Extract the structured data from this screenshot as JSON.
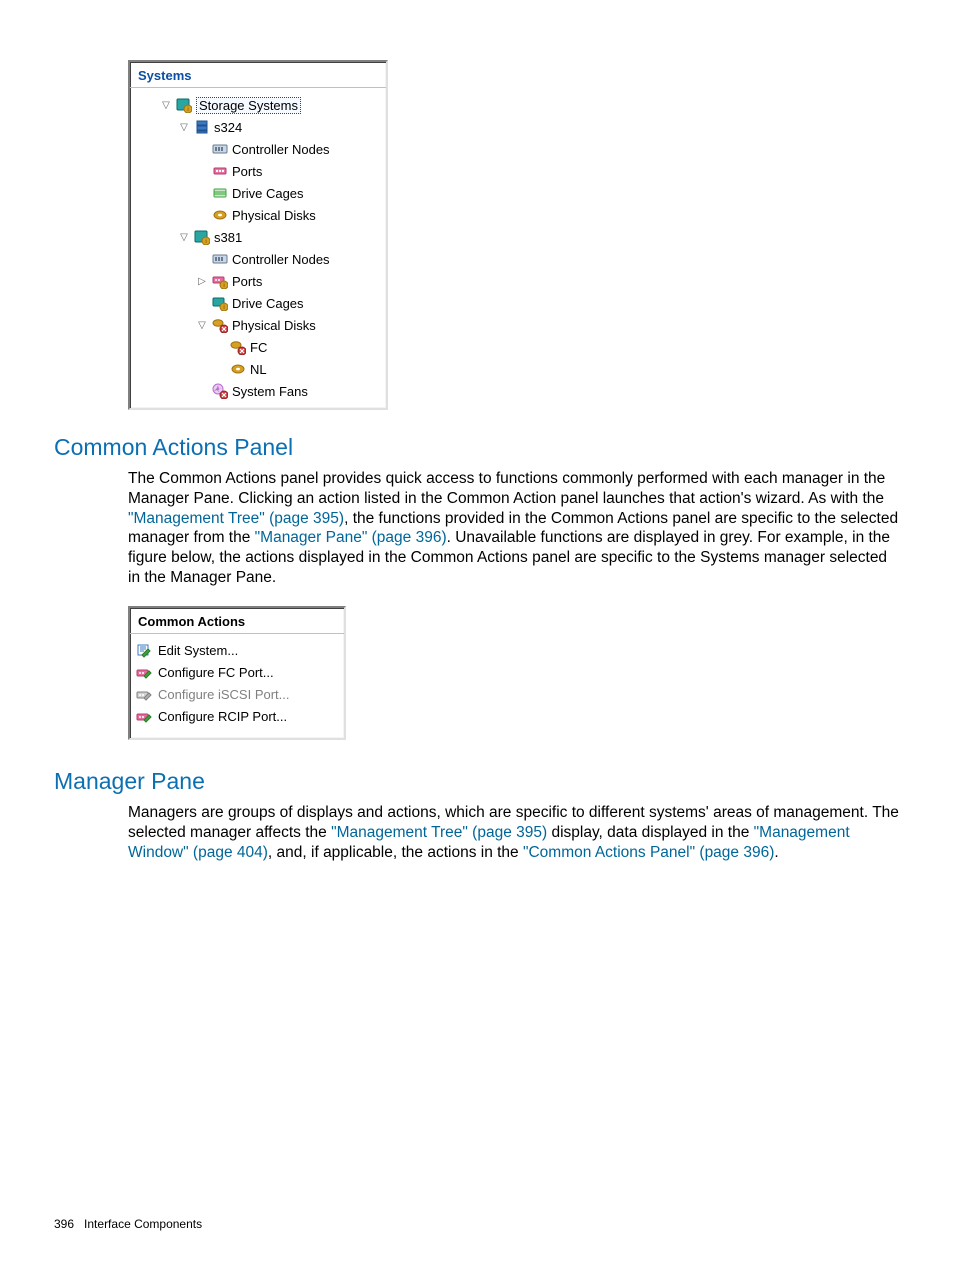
{
  "systems_panel": {
    "title": "Systems",
    "title_color": "#0b4ea2",
    "tree": [
      {
        "level": 1,
        "expander": "down",
        "icon": "storage-systems",
        "label": "Storage Systems",
        "selected": true
      },
      {
        "level": 2,
        "expander": "down",
        "icon": "system",
        "label": "s324"
      },
      {
        "level": 3,
        "expander": "",
        "icon": "controller",
        "label": "Controller Nodes"
      },
      {
        "level": 3,
        "expander": "",
        "icon": "ports",
        "label": "Ports"
      },
      {
        "level": 3,
        "expander": "",
        "icon": "cages",
        "label": "Drive Cages"
      },
      {
        "level": 3,
        "expander": "",
        "icon": "disks",
        "label": "Physical Disks"
      },
      {
        "level": 2,
        "expander": "down",
        "icon": "system-alert",
        "label": "s381"
      },
      {
        "level": 3,
        "expander": "",
        "icon": "controller",
        "label": "Controller Nodes"
      },
      {
        "level": 3,
        "expander": "right",
        "icon": "ports-alert",
        "label": "Ports"
      },
      {
        "level": 3,
        "expander": "",
        "icon": "cages-alert",
        "label": "Drive Cages"
      },
      {
        "level": 3,
        "expander": "down",
        "icon": "disks-alert",
        "label": "Physical Disks"
      },
      {
        "level": 4,
        "expander": "",
        "icon": "fc-alert",
        "label": "FC"
      },
      {
        "level": 4,
        "expander": "",
        "icon": "nl",
        "label": "NL"
      },
      {
        "level": 3,
        "expander": "",
        "icon": "fans-alert",
        "label": "System Fans"
      }
    ]
  },
  "icon_colors": {
    "teal": "#2aa6a2",
    "blue": "#3a78c0",
    "gold": "#d6a020",
    "green": "#3aa63a",
    "red": "#d04040",
    "pink": "#e86a9c",
    "purple": "#b86ad0",
    "grey": "#808080",
    "slate": "#6a7a8a"
  },
  "section1": {
    "heading": "Common Actions Panel",
    "p1a": "The Common Actions panel provides quick access to functions commonly performed with each manager in the Manager Pane. Clicking an action listed in the Common Action panel launches that action's wizard. As with the ",
    "link1": "\"Management Tree\" (page 395)",
    "p1b": ", the functions provided in the Common Actions panel are specific to the selected manager from the ",
    "link2": "\"Manager Pane\" (page 396)",
    "p1c": ". Unavailable functions are displayed in grey. For example, in the figure below, the actions displayed in the Common Actions panel are specific to the Systems manager selected in the Manager Pane."
  },
  "actions_panel": {
    "title": "Common Actions",
    "items": [
      {
        "icon": "edit",
        "label": "Edit System...",
        "enabled": true
      },
      {
        "icon": "port",
        "label": "Configure FC Port...",
        "enabled": true
      },
      {
        "icon": "port-grey",
        "label": "Configure iSCSI Port...",
        "enabled": false
      },
      {
        "icon": "port",
        "label": "Configure RCIP Port...",
        "enabled": true
      }
    ]
  },
  "section2": {
    "heading": "Manager Pane",
    "p1a": "Managers are groups of displays and actions, which are specific to different systems' areas of management. The selected manager affects the ",
    "link1": "\"Management Tree\" (page 395)",
    "p1b": " display, data displayed in the ",
    "link2": "\"Management Window\" (page 404)",
    "p1c": ", and, if applicable, the actions in the ",
    "link3": "\"Common Actions Panel\" (page 396)",
    "p1d": "."
  },
  "footer": {
    "page": "396",
    "section": "Interface Components"
  }
}
